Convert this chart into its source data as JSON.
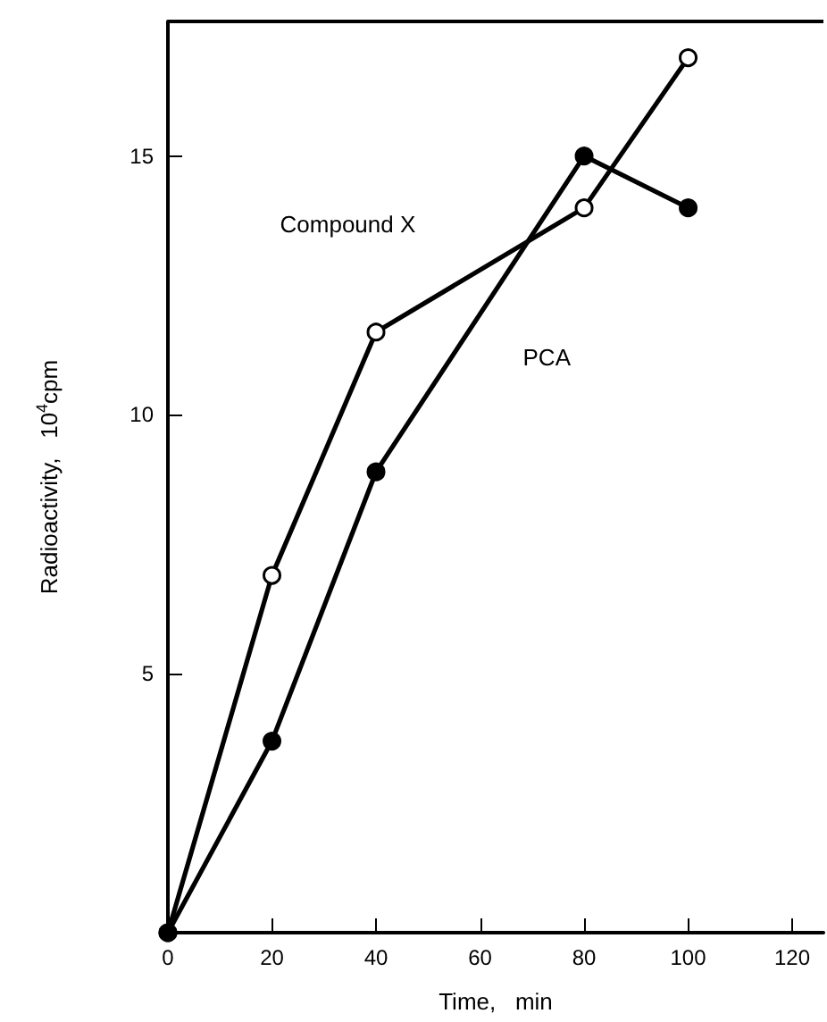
{
  "chart_data": {
    "type": "line",
    "xlabel": "Time,   min",
    "ylabel": "Radioactivity,   10$^{4}$cpm",
    "series": [
      {
        "name": "Compound X",
        "color": "#000000",
        "x": [
          0,
          20,
          40,
          80,
          100
        ],
        "values": [
          0,
          6.9,
          11.6,
          14.0,
          16.9
        ]
      },
      {
        "name": "PCA",
        "color": "#000000",
        "x": [
          0,
          20,
          40,
          80,
          100
        ],
        "values": [
          0,
          3.7,
          8.9,
          15.0,
          14.0
        ]
      }
    ],
    "xlim": [
      0,
      126
    ],
    "xticks": [
      0,
      20,
      40,
      60,
      80,
      100,
      120
    ],
    "ylim": [
      0,
      17.6
    ],
    "yticks": [
      5,
      10,
      15
    ],
    "grid": false,
    "legend": false,
    "marker": "circle",
    "line_style": "solid"
  }
}
